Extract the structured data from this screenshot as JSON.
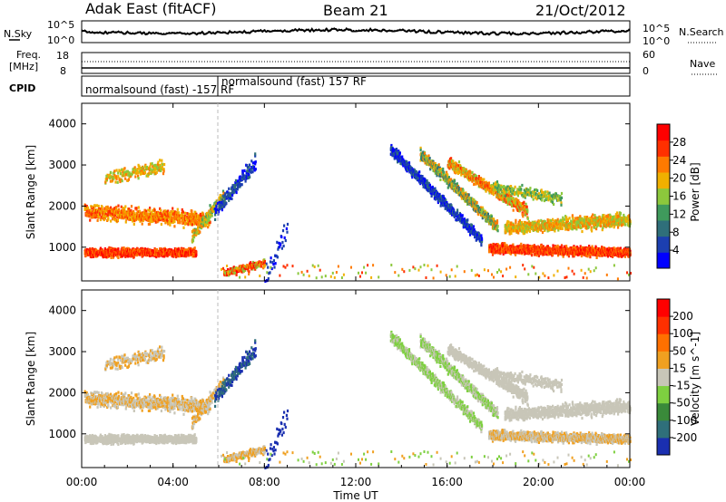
{
  "header": {
    "station": "Adak East (fitACF)",
    "beam": "Beam 21",
    "date": "21/Oct/2012"
  },
  "top_panels": {
    "nsky_label": "N.Sky",
    "nsearch_label": "N.Search",
    "freq_label_1": "Freq.",
    "freq_label_2": "[MHz]",
    "nave_label": "Nave",
    "cpid_label": "CPID",
    "count_ticks": [
      "10^5",
      "10^0"
    ],
    "freq_ticks": [
      "18",
      "8"
    ],
    "nave_ticks": [
      "60",
      "0"
    ],
    "cpid_entries": [
      "normalsound (fast) -157 RF",
      "normalsound (fast) 157 RF"
    ]
  },
  "chart_data": [
    {
      "type": "heatmap",
      "name": "power-panel",
      "ylabel": "Slant Range [km]",
      "yticks": [
        "4000",
        "3000",
        "2000",
        "1000"
      ],
      "colorbar_label": "Power [dB]",
      "colorbar_ticks": [
        "28",
        "24",
        "20",
        "16",
        "12",
        "8",
        "4"
      ],
      "colors": [
        "#0000ff",
        "#1c3fb0",
        "#2f6f7a",
        "#3f9a5c",
        "#8cc83c",
        "#f0b000",
        "#ff7a00",
        "#ff3000",
        "#ff0000"
      ]
    },
    {
      "type": "heatmap",
      "name": "velocity-panel",
      "ylabel": "Slant Range [km]",
      "yticks": [
        "4000",
        "3000",
        "2000",
        "1000"
      ],
      "colorbar_label": "Velocity [m s^-1]",
      "colorbar_ticks": [
        "200",
        "100",
        "50",
        "15",
        "-15",
        "-50",
        "-100",
        "-200"
      ],
      "colors": [
        "#1a2fb0",
        "#2f6f7a",
        "#3a8a3a",
        "#7ed040",
        "#c8c6b8",
        "#f0a020",
        "#ff7000",
        "#ff3000",
        "#ff0000"
      ]
    }
  ],
  "time_axis": {
    "xlabel": "Time UT",
    "ticks": [
      "00:00",
      "04:00",
      "08:00",
      "12:00",
      "16:00",
      "20:00",
      "00:00"
    ]
  }
}
